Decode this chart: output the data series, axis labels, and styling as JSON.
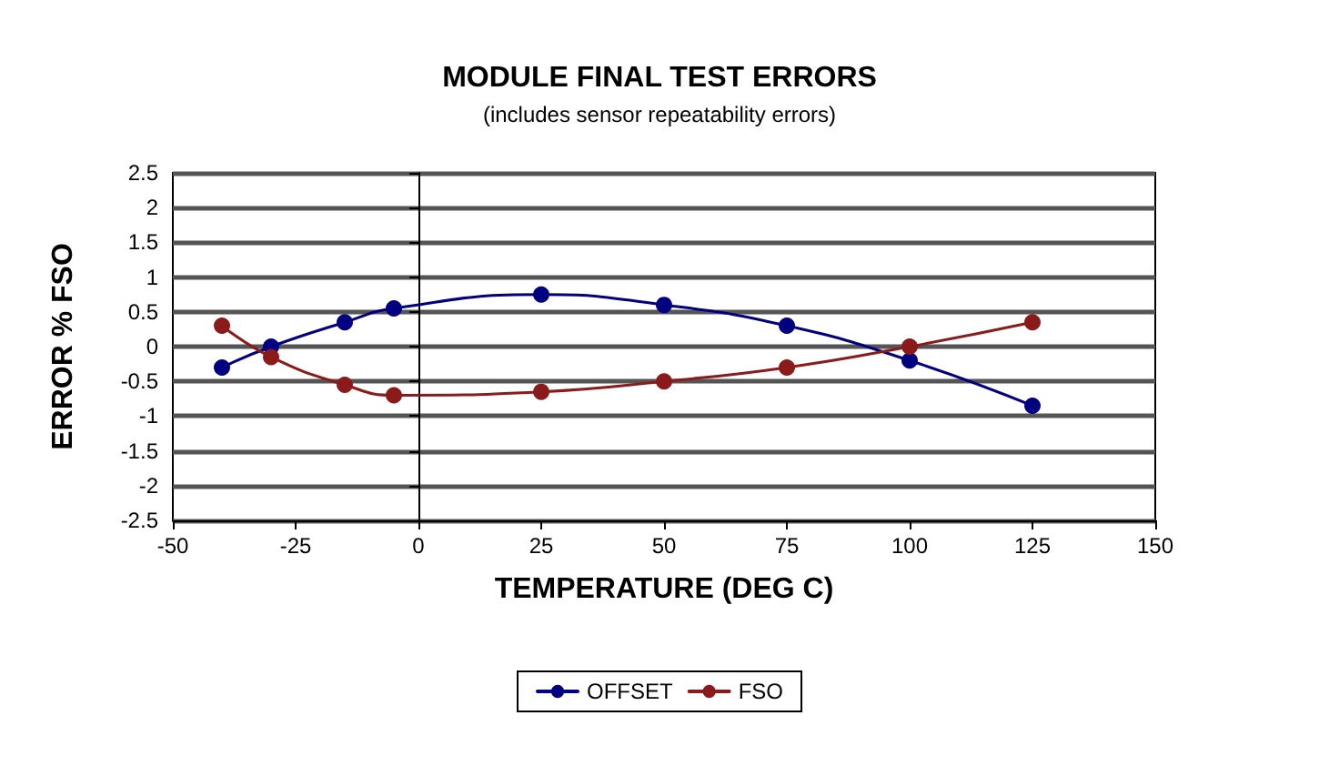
{
  "chart_data": {
    "type": "line",
    "title": "MODULE FINAL TEST ERRORS",
    "subtitle": "(includes sensor repeatability errors)",
    "xlabel": "TEMPERATURE (DEG C)",
    "ylabel": "ERROR % FSO",
    "x": [
      -40,
      -30,
      -15,
      -5,
      25,
      50,
      75,
      100,
      125
    ],
    "series": [
      {
        "name": "OFFSET",
        "color": "#000080",
        "values": [
          -0.3,
          0.0,
          0.35,
          0.55,
          0.75,
          0.6,
          0.3,
          -0.2,
          -0.85
        ]
      },
      {
        "name": "FSO",
        "color": "#8b1a1a",
        "values": [
          0.3,
          -0.15,
          -0.55,
          -0.7,
          -0.65,
          -0.5,
          -0.3,
          0.0,
          0.35
        ]
      }
    ],
    "xlim": [
      -50,
      150
    ],
    "xticks": [
      -50,
      -25,
      0,
      25,
      50,
      75,
      100,
      125,
      150
    ],
    "ylim": [
      -2.5,
      2.5
    ],
    "yticks": [
      -2.5,
      -2,
      -1.5,
      -1,
      -0.5,
      0,
      0.5,
      1,
      1.5,
      2,
      2.5
    ],
    "grid": "y",
    "legend": "bottom",
    "marker": "circle",
    "line_style": "solid"
  }
}
